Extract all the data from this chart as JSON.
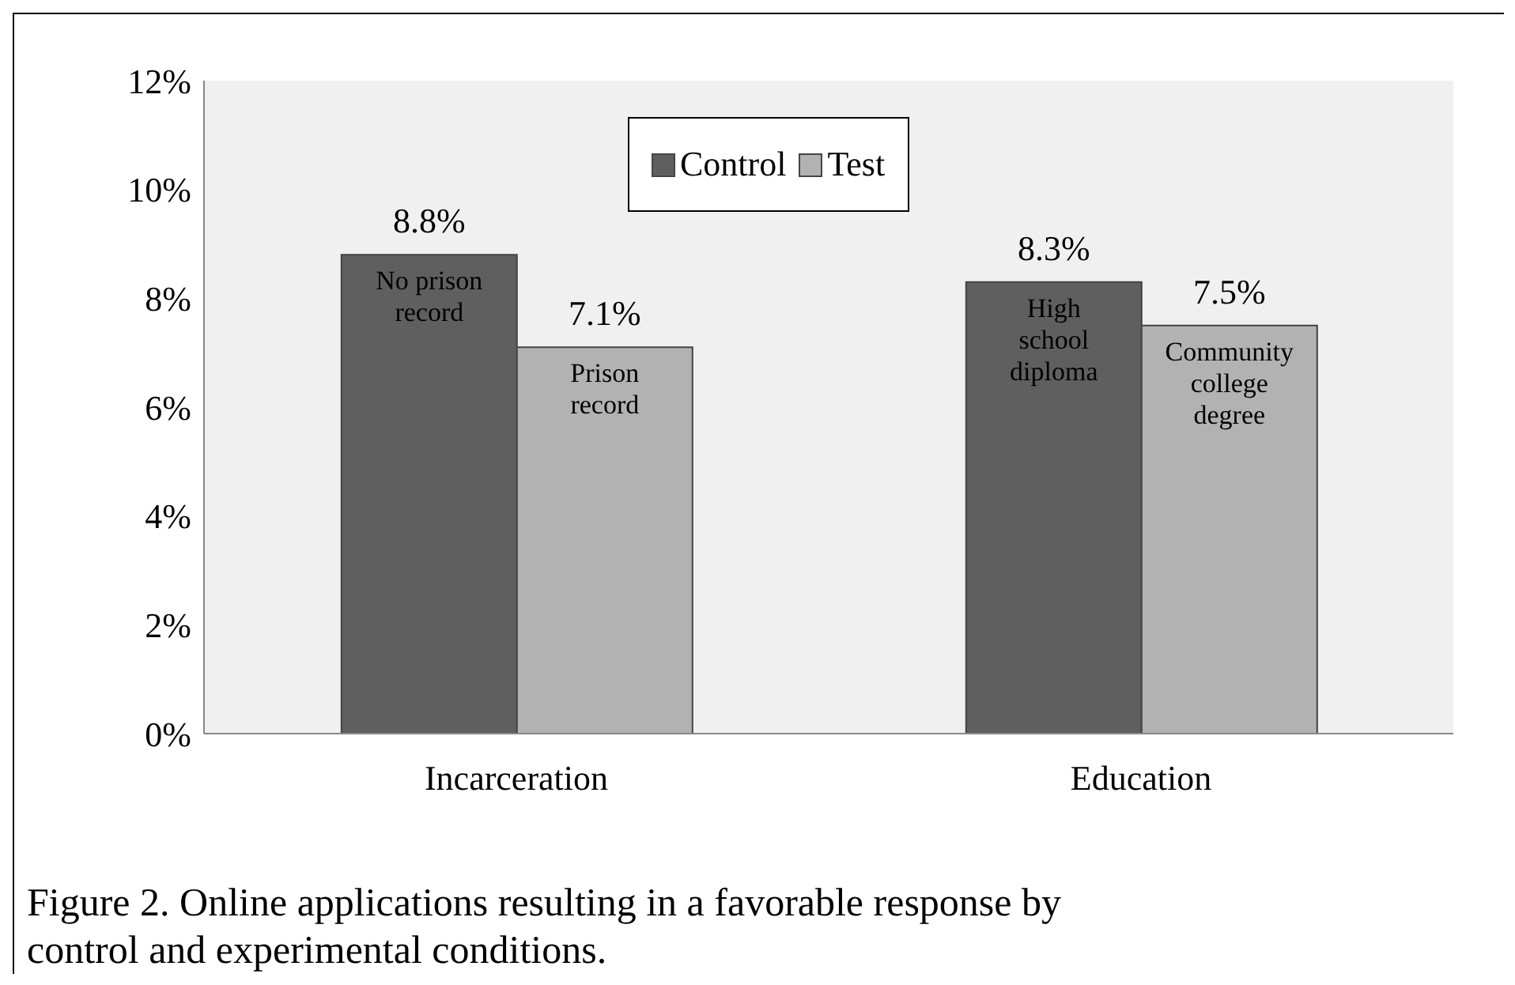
{
  "chart_data": {
    "type": "bar",
    "categories": [
      "Incarceration",
      "Education"
    ],
    "series": [
      {
        "name": "Control",
        "color": "#5f5f5f",
        "values": [
          8.8,
          8.3
        ],
        "value_labels": [
          "8.8%",
          "8.3%"
        ]
      },
      {
        "name": "Test",
        "color": "#b2b2b2",
        "values": [
          7.1,
          7.5
        ],
        "value_labels": [
          "7.1%",
          "7.5%"
        ]
      }
    ],
    "ylim": [
      0,
      12
    ],
    "yticks": [
      {
        "value": 0,
        "label": "0%"
      },
      {
        "value": 2,
        "label": "2%"
      },
      {
        "value": 4,
        "label": "4%"
      },
      {
        "value": 6,
        "label": "6%"
      },
      {
        "value": 8,
        "label": "8%"
      },
      {
        "value": 10,
        "label": "10%"
      },
      {
        "value": 12,
        "label": "12%"
      }
    ],
    "legend": "top",
    "annotations": [
      {
        "text": "No prison record",
        "x": "Incarceration",
        "y": 8.8
      },
      {
        "text": "Prison record",
        "x": "Incarceration",
        "y": 7.1
      },
      {
        "text": "High school diploma",
        "x": "Education",
        "y": 8.3
      },
      {
        "text": "Community college degree",
        "x": "Education",
        "y": 7.5
      },
      "Figure 2. Online applications resulting in a favorable response by control and experimental conditions."
    ]
  }
}
